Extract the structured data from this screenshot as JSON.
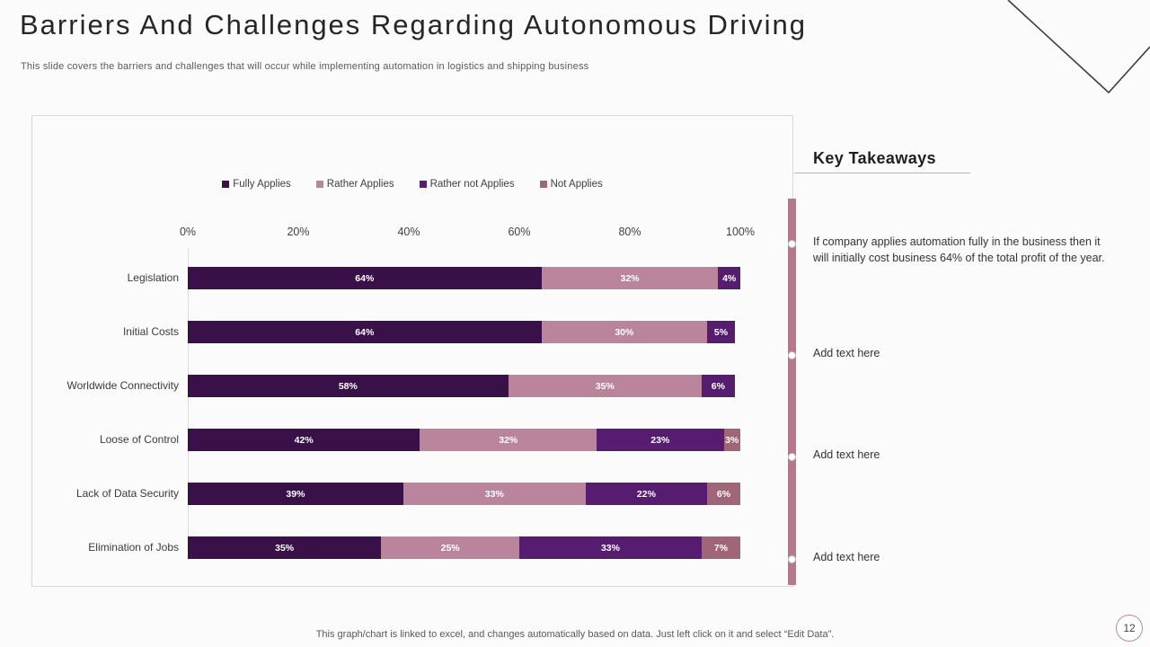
{
  "slide": {
    "title": "Barriers And Challenges Regarding Autonomous Driving",
    "subtitle": "This slide covers the barriers and challenges that will occur while implementing automation in logistics and shipping business",
    "footer": "This graph/chart is linked to excel,  and changes automatically based on data. Just left click on it and select “Edit Data”.",
    "page_number": "12"
  },
  "chart_data": {
    "type": "bar",
    "orientation": "horizontal",
    "stacked": true,
    "title": "",
    "xlabel": "",
    "ylabel": "",
    "xlim": [
      0,
      100
    ],
    "x_ticks": [
      "0%",
      "20%",
      "40%",
      "60%",
      "80%",
      "100%"
    ],
    "grid": false,
    "legend_position": "top",
    "value_label_format": "{value}%",
    "categories": [
      "Legislation",
      "Initial Costs",
      "Worldwide Connectivity",
      "Loose of Control",
      "Lack of Data Security",
      "Elimination of Jobs"
    ],
    "series": [
      {
        "name": "Fully Applies",
        "color": "#3A1048",
        "values": [
          64,
          64,
          58,
          42,
          39,
          35
        ]
      },
      {
        "name": "Rather Applies",
        "color": "#BA859C",
        "values": [
          32,
          30,
          35,
          32,
          33,
          25
        ]
      },
      {
        "name": "Rather not Applies",
        "color": "#561C70",
        "values": [
          4,
          5,
          6,
          23,
          22,
          33
        ]
      },
      {
        "name": "Not Applies",
        "color": "#A06677",
        "values": [
          0,
          0,
          0,
          3,
          6,
          7
        ]
      }
    ]
  },
  "takeaways": {
    "heading": "Key Takeaways",
    "accent_color": "#B8758C",
    "items": [
      "If company applies automation fully in the business then it will initially  cost business 64% of the total profit of the year.",
      "Add text here",
      "Add text here",
      "Add text here"
    ]
  }
}
